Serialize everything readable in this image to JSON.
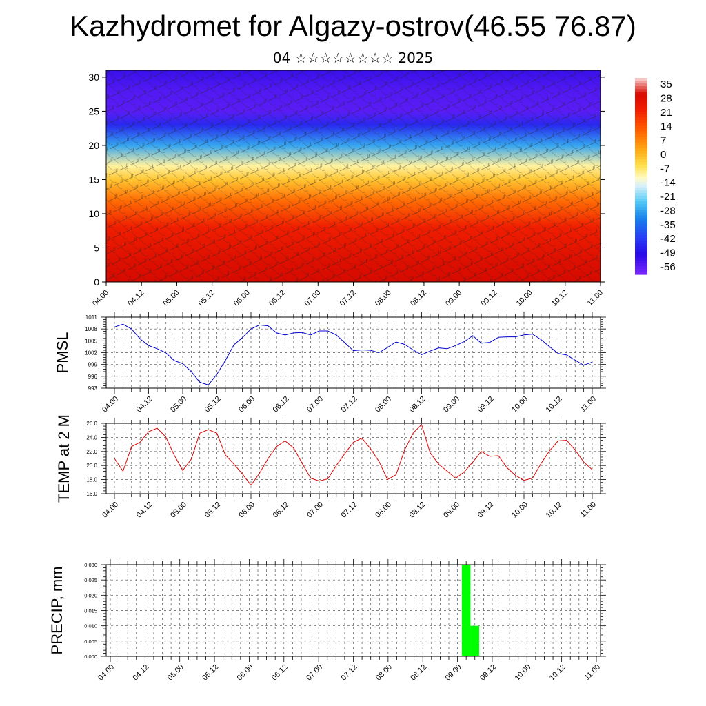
{
  "header": {
    "title": "Kazhydromet for Algazy-ostrov(46.55 76.87)",
    "subtitle": "04 ☆☆☆☆☆☆☆☆ 2025"
  },
  "chart_data": [
    {
      "type": "heatmap",
      "title": "",
      "x_ticks": [
        "04.00",
        "04.12",
        "05.00",
        "05.12",
        "06.00",
        "06.12",
        "07.00",
        "07.12",
        "08.00",
        "08.12",
        "09.00",
        "09.12",
        "10.00",
        "10.12",
        "11.00"
      ],
      "y_ticks": [
        "0",
        "5",
        "10",
        "15",
        "20",
        "25",
        "30"
      ],
      "ylim": [
        0,
        31
      ],
      "colorbar": {
        "labels": [
          "35",
          "28",
          "21",
          "14",
          "7",
          "0",
          "-7",
          "-14",
          "-21",
          "-28",
          "-35",
          "-42",
          "-49",
          "-56"
        ],
        "range": [
          -60,
          38
        ]
      },
      "value_profile_by_level": [
        {
          "level": 0,
          "value": 30
        },
        {
          "level": 3,
          "value": 28
        },
        {
          "level": 8,
          "value": 22
        },
        {
          "level": 12,
          "value": 10
        },
        {
          "level": 15,
          "value": -2
        },
        {
          "level": 17,
          "value": -10
        },
        {
          "level": 20,
          "value": -28
        },
        {
          "level": 23,
          "value": -45
        },
        {
          "level": 25,
          "value": -56
        },
        {
          "level": 28,
          "value": -55
        },
        {
          "level": 31,
          "value": -52
        }
      ],
      "vectors": "wind barbs overlay"
    },
    {
      "type": "line",
      "ylabel": "PMSL",
      "x_ticks": [
        "04.00",
        "04.12",
        "05.00",
        "05.12",
        "06.00",
        "06.12",
        "07.00",
        "07.12",
        "08.00",
        "08.12",
        "09.00",
        "09.12",
        "10.00",
        "10.12",
        "11.00"
      ],
      "y_ticks": [
        "993",
        "996",
        "999",
        "1002",
        "1005",
        "1008",
        "1011"
      ],
      "ylim": [
        993,
        1011
      ],
      "series": [
        {
          "color": "#0000cc",
          "values": [
            1008.5,
            1009.2,
            1008.0,
            1005.5,
            1003.8,
            1003.0,
            1002.0,
            1000.0,
            999.2,
            997.2,
            994.5,
            993.8,
            996.5,
            1000.0,
            1004.0,
            1005.8,
            1008.0,
            1009.0,
            1008.8,
            1007.0,
            1006.5,
            1007.0,
            1007.1,
            1006.5,
            1007.5,
            1007.5,
            1006.5,
            1004.5,
            1002.5,
            1002.7,
            1002.6,
            1002.0,
            1003.3,
            1004.7,
            1004.1,
            1002.7,
            1001.5,
            1002.4,
            1003.2,
            1003.0,
            1003.8,
            1004.8,
            1006.3,
            1004.4,
            1004.6,
            1005.9,
            1006.0,
            1006.0,
            1006.5,
            1006.7,
            1005.3,
            1003.5,
            1001.8,
            1001.4,
            1000.1,
            998.8,
            999.6
          ]
        }
      ]
    },
    {
      "type": "line",
      "ylabel": "TEMP at 2 M",
      "x_ticks": [
        "04.00",
        "04.12",
        "05.00",
        "05.12",
        "06.00",
        "06.12",
        "07.00",
        "07.12",
        "08.00",
        "08.12",
        "09.00",
        "09.12",
        "10.00",
        "10.12",
        "11.00"
      ],
      "y_ticks": [
        "16.0",
        "18.0",
        "20.0",
        "22.0",
        "24.0",
        "26.0"
      ],
      "ylim": [
        16,
        26
      ],
      "series": [
        {
          "color": "#dd0000",
          "values": [
            21.0,
            19.2,
            22.7,
            23.3,
            24.8,
            25.3,
            24.1,
            21.5,
            19.3,
            20.9,
            24.6,
            25.1,
            24.6,
            21.5,
            20.2,
            18.8,
            17.2,
            18.9,
            21.0,
            22.7,
            23.5,
            22.5,
            20.3,
            18.2,
            17.8,
            18.1,
            20.0,
            21.7,
            23.3,
            23.9,
            22.4,
            20.6,
            18.0,
            18.7,
            22.2,
            24.6,
            25.8,
            21.8,
            20.2,
            19.2,
            18.2,
            19.1,
            20.5,
            22.0,
            21.3,
            21.4,
            19.7,
            18.6,
            17.9,
            18.2,
            20.3,
            22.1,
            23.5,
            23.6,
            22.2,
            20.5,
            19.4
          ]
        }
      ]
    },
    {
      "type": "bar",
      "ylabel": "PRECIP, mm",
      "x_ticks": [
        "04.00",
        "04.12",
        "05.00",
        "05.12",
        "06.00",
        "06.12",
        "07.00",
        "07.12",
        "08.00",
        "08.12",
        "09.00",
        "09.12",
        "10.00",
        "10.12",
        "11.00"
      ],
      "y_ticks": [
        "0.000",
        "0.005",
        "0.010",
        "0.015",
        "0.020",
        "0.025",
        "0.030"
      ],
      "ylim": [
        0,
        0.03
      ],
      "bars": [
        {
          "x_hours": 123,
          "value": 0.03
        },
        {
          "x_hours": 126,
          "value": 0.01
        }
      ],
      "color": "#00ff00"
    }
  ]
}
